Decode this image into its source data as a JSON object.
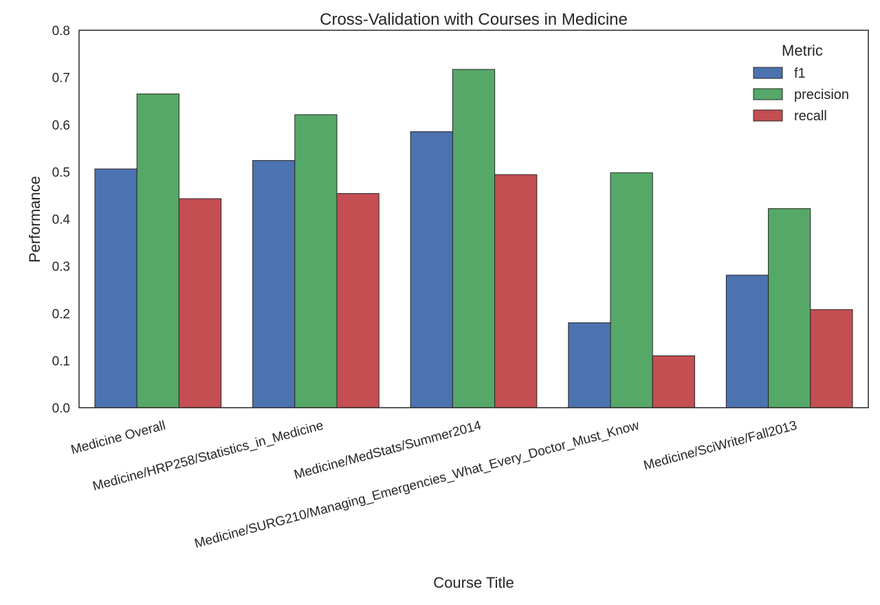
{
  "chart_data": {
    "type": "bar",
    "title": "Cross-Validation with Courses in Medicine",
    "xlabel": "Course Title",
    "ylabel": "Performance",
    "ylim": [
      0,
      0.8
    ],
    "yticks": [
      "0.0",
      "0.1",
      "0.2",
      "0.3",
      "0.4",
      "0.5",
      "0.6",
      "0.7",
      "0.8"
    ],
    "grid": false,
    "legend_position": "top-right",
    "legend_title": "Metric",
    "categories": [
      "Medicine Overall",
      "Medicine/HRP258/Statistics_in_Medicine",
      "Medicine/MedStats/Summer2014",
      "Medicine/SURG210/Managing_Emergencies_What_Every_Doctor_Must_Know",
      "Medicine/SciWrite/Fall2013"
    ],
    "series": [
      {
        "name": "f1",
        "color": "#4c72b0",
        "values": [
          0.506,
          0.524,
          0.585,
          0.18,
          0.281
        ]
      },
      {
        "name": "precision",
        "color": "#55a868",
        "values": [
          0.665,
          0.621,
          0.717,
          0.498,
          0.422
        ]
      },
      {
        "name": "recall",
        "color": "#c44e52",
        "values": [
          0.443,
          0.454,
          0.494,
          0.11,
          0.208
        ]
      }
    ]
  }
}
